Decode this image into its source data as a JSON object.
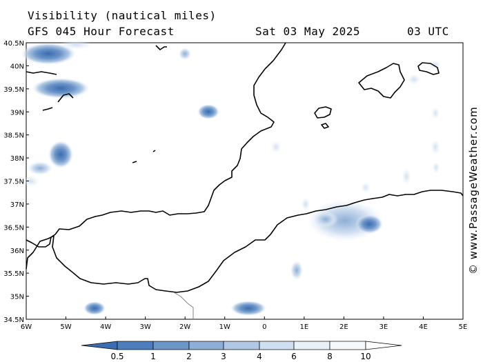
{
  "header": {
    "variable": "Visibility (nautical miles)",
    "model": "GFS 045 Hour Forecast",
    "date": "Sat 03 May 2025",
    "time": "03 UTC"
  },
  "credit": "© www.PassageWeather.com",
  "map": {
    "lat_labels": [
      "40.5N",
      "40N",
      "39.5N",
      "39N",
      "38.5N",
      "38N",
      "37.5N",
      "37N",
      "36.5N",
      "36N",
      "35.5N",
      "35N",
      "34.5N"
    ],
    "lon_labels": [
      "6W",
      "5W",
      "4W",
      "3W",
      "2W",
      "1W",
      "0",
      "1E",
      "2E",
      "3E",
      "4E",
      "5E"
    ],
    "lat_range": [
      34.5,
      40.5
    ],
    "lon_range": [
      -6,
      5
    ],
    "fog_patches": [
      {
        "lon": -5.55,
        "lat": 40.27,
        "vis": 0.5
      },
      {
        "lon": -5.15,
        "lat": 39.55,
        "vis": 0.5
      },
      {
        "lon": -1.5,
        "lat": 39.0,
        "vis": 2
      },
      {
        "lon": -0.3,
        "lat": 34.75,
        "vis": 0.5
      },
      {
        "lon": -4.3,
        "lat": 34.75,
        "vis": 0.5
      },
      {
        "lon": -5.05,
        "lat": 38.1,
        "vis": 2
      },
      {
        "lon": 2.6,
        "lat": 36.5,
        "vis": 2
      },
      {
        "lon": -2.2,
        "lat": 40.25,
        "vis": 4
      }
    ]
  },
  "colorbar": {
    "labels": [
      "0.5",
      "1",
      "2",
      "3",
      "4",
      "6",
      "8",
      "10"
    ],
    "colors": [
      "#3a6cb0",
      "#4c7ebd",
      "#6c95c8",
      "#8eaed6",
      "#b1c8e4",
      "#d0dff0",
      "#e8f0f8",
      "#ffffff"
    ]
  },
  "colors": {
    "coast": "#000000",
    "border": "#808080",
    "sea": "#ffffff"
  }
}
